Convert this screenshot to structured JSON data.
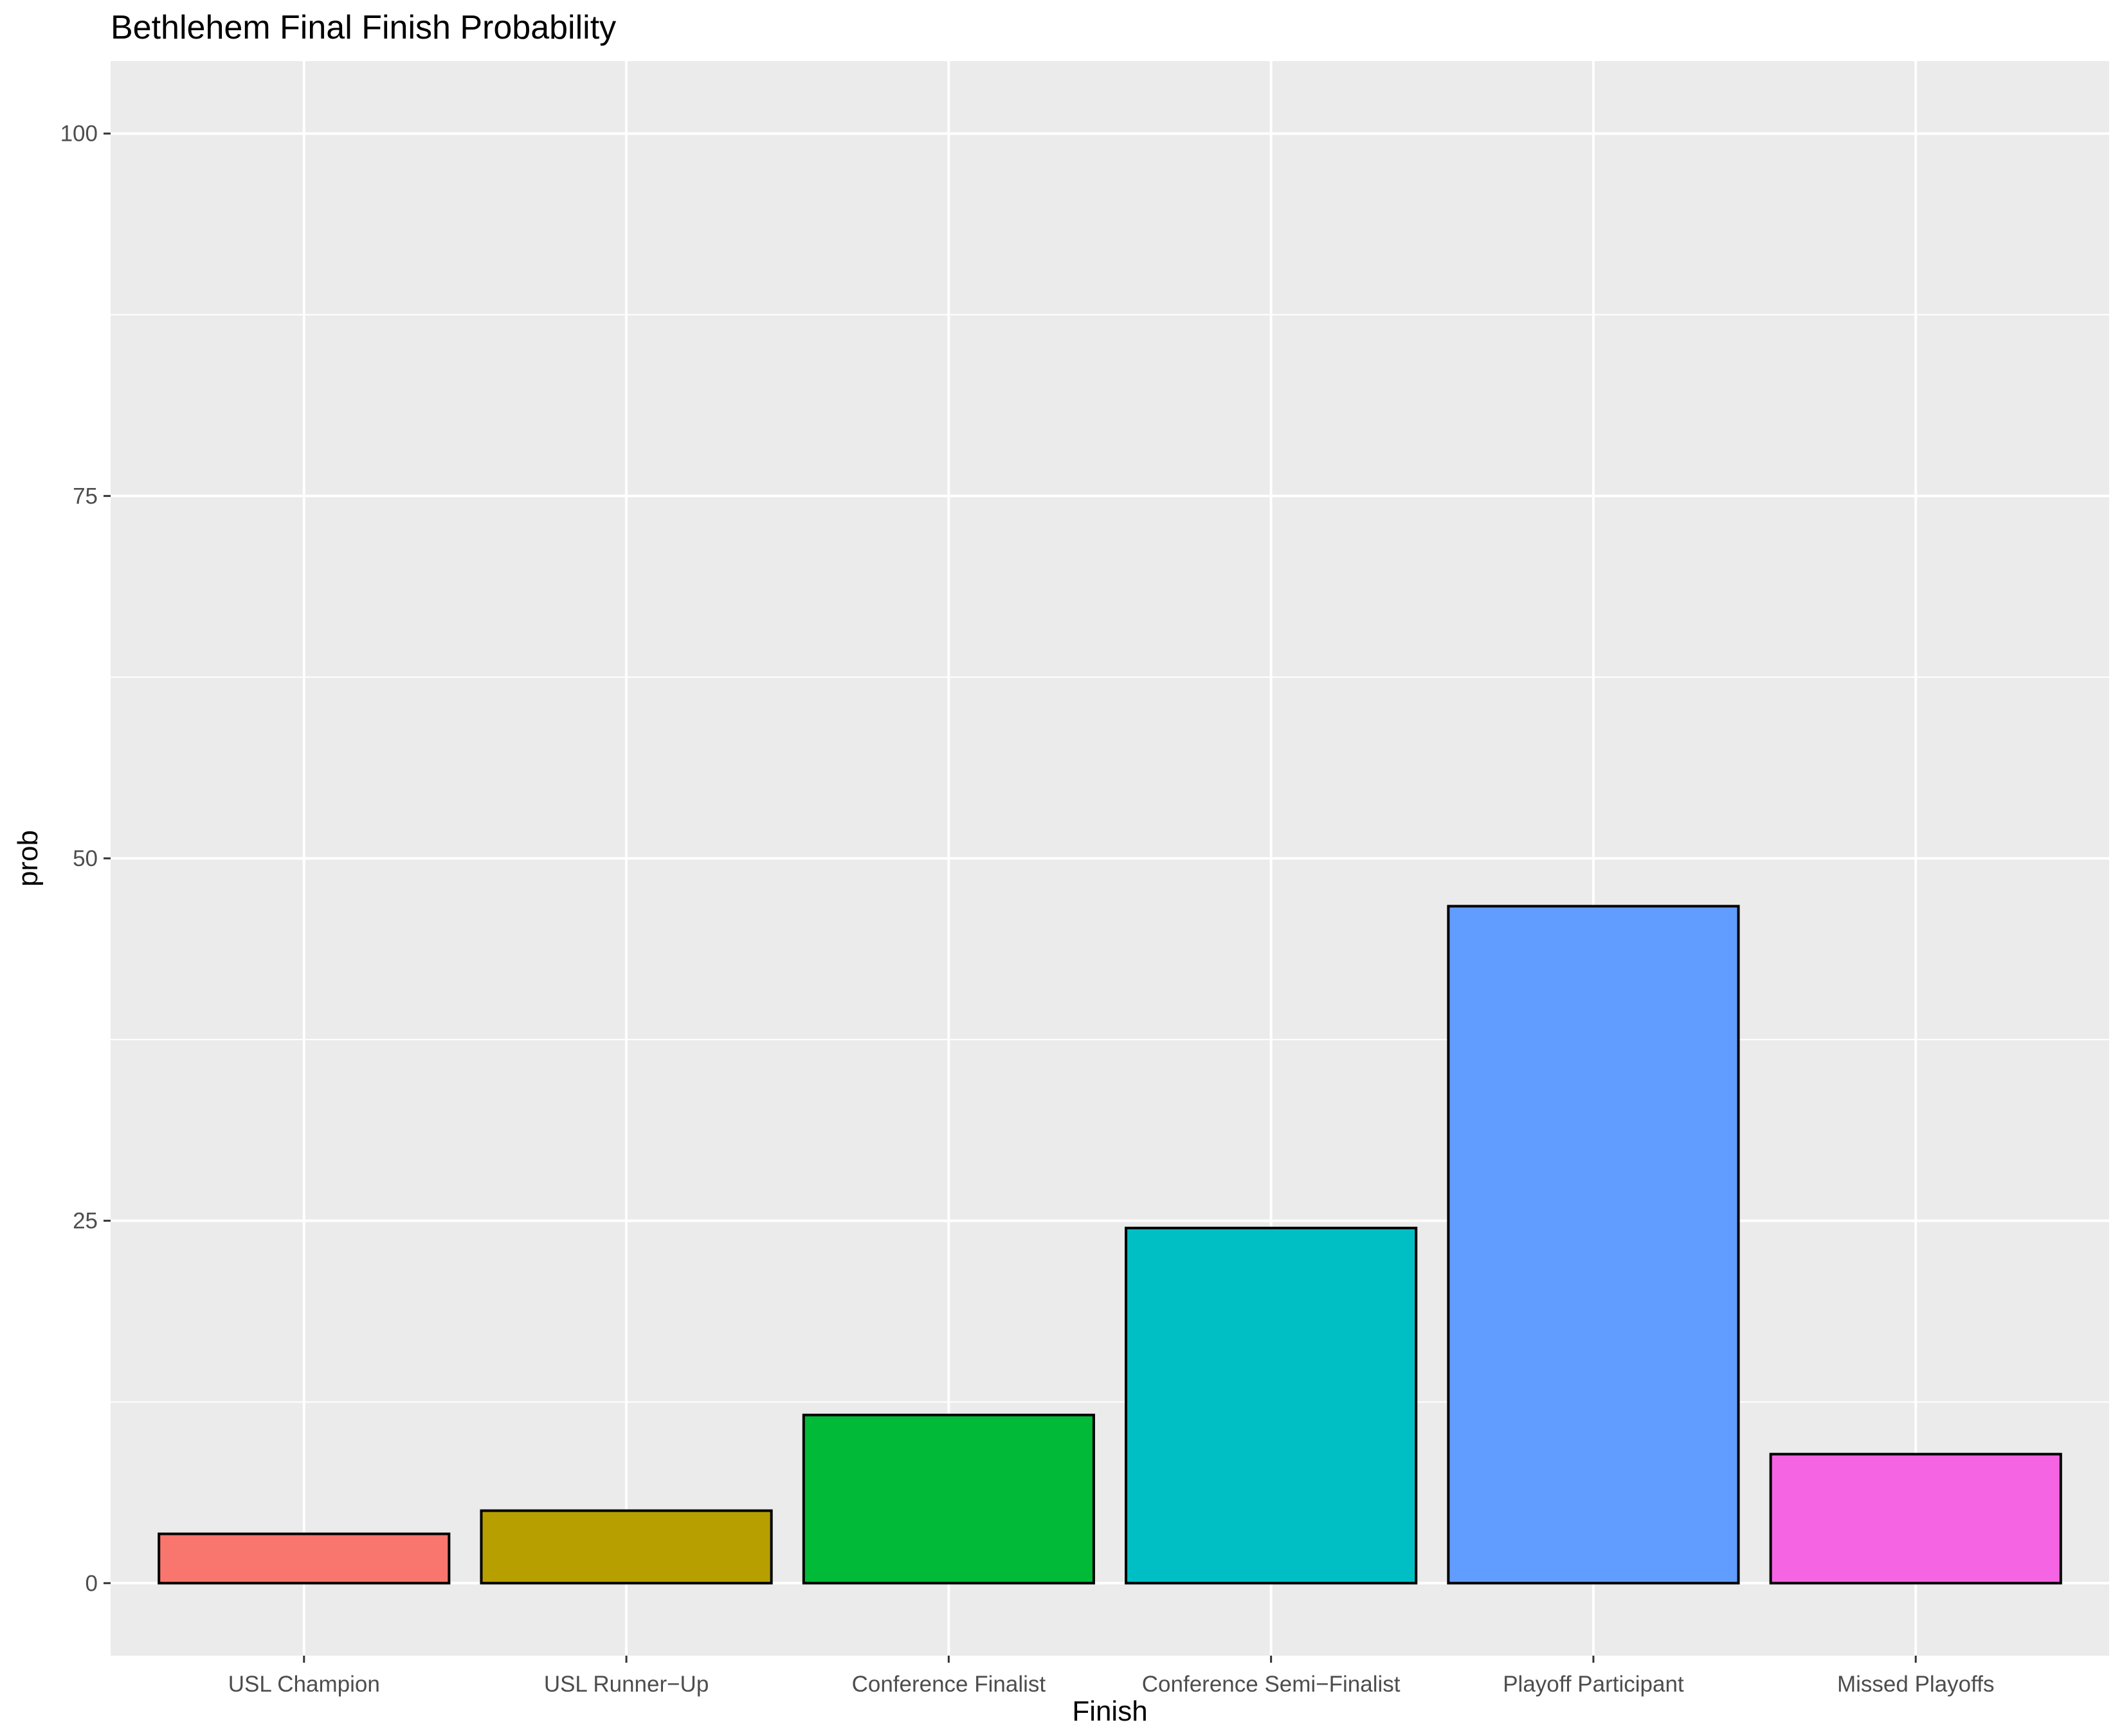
{
  "chart_data": {
    "type": "bar",
    "title": "Bethlehem Final Finish Probability",
    "xlabel": "Finish",
    "ylabel": "prob",
    "categories": [
      "USL Champion",
      "USL Runner−Up",
      "Conference Finalist",
      "Conference Semi−Finalist",
      "Playoff Participant",
      "Missed Playoffs"
    ],
    "values": [
      3.4,
      5.0,
      11.6,
      24.5,
      46.7,
      8.9
    ],
    "colors": [
      "#F8766D",
      "#B79F00",
      "#00BA38",
      "#00BFC4",
      "#619CFF",
      "#F564E3"
    ],
    "ylim": [
      -5,
      105
    ],
    "yticks": [
      0,
      25,
      50,
      75,
      100
    ],
    "ytick_labels": [
      "0",
      "25",
      "50",
      "75",
      "100"
    ],
    "grid": true,
    "legend": "none",
    "panel_background": "#EBEBEB",
    "grid_color": "#FFFFFF",
    "bar_outline": "#000000"
  }
}
